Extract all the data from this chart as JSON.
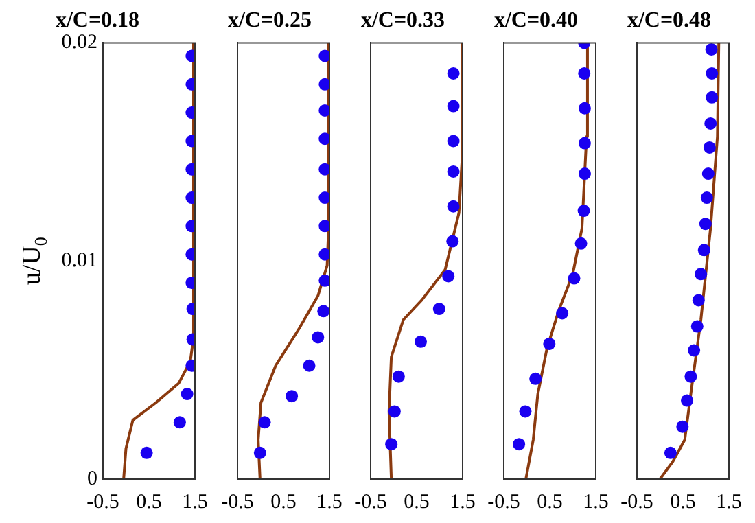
{
  "chart_data": [
    {
      "type": "scatter",
      "title": "x/C=0.18",
      "ylabel": "u/U$_{0}$",
      "xlim": [
        -0.5,
        1.5
      ],
      "xticks": [
        -0.5,
        0.5,
        1.5
      ],
      "ylim": [
        0,
        0.02
      ],
      "yticks": [
        0,
        0.01,
        0.02
      ],
      "grid": false,
      "legend": false,
      "series": [
        {
          "type": "scatter",
          "color": "#1a00f0",
          "marker": "circle",
          "x": [
            1.43,
            1.43,
            1.43,
            1.43,
            1.43,
            1.43,
            1.43,
            1.43,
            1.43,
            1.45,
            1.45,
            1.43,
            1.33,
            1.17,
            0.45
          ],
          "values": [
            0.0194,
            0.0181,
            0.0168,
            0.0155,
            0.0142,
            0.0129,
            0.0116,
            0.0103,
            0.009,
            0.0078,
            0.0064,
            0.0052,
            0.0039,
            0.0026,
            0.0012
          ]
        },
        {
          "type": "line",
          "color": "#8b3a0f",
          "marker": "none",
          "x": [
            -0.05,
            0.0,
            0.15,
            0.65,
            1.15,
            1.4,
            1.47,
            1.47
          ],
          "values": [
            0,
            0.0014,
            0.0027,
            0.0035,
            0.0044,
            0.0054,
            0.0065,
            0.02
          ]
        }
      ]
    },
    {
      "type": "scatter",
      "title": "x/C=0.25",
      "xlim": [
        -0.5,
        1.5
      ],
      "xticks": [
        -0.5,
        0.5,
        1.5
      ],
      "ylim": [
        0,
        0.02
      ],
      "yticks": [
        0,
        0.01,
        0.02
      ],
      "tick_labels": "x",
      "grid": false,
      "legend": false,
      "series": [
        {
          "type": "scatter",
          "color": "#1a00f0",
          "marker": "circle",
          "x": [
            1.4,
            1.4,
            1.4,
            1.4,
            1.4,
            1.4,
            1.4,
            1.4,
            1.4,
            1.37,
            1.25,
            1.06,
            0.68,
            0.09,
            -0.01
          ],
          "values": [
            0.0194,
            0.0181,
            0.0169,
            0.0156,
            0.0142,
            0.0129,
            0.0116,
            0.0103,
            0.0091,
            0.0077,
            0.0065,
            0.0052,
            0.0038,
            0.0026,
            0.0012
          ]
        },
        {
          "type": "line",
          "color": "#8b3a0f",
          "marker": "none",
          "x": [
            -0.01,
            -0.05,
            0.01,
            0.33,
            0.84,
            1.25,
            1.45,
            1.48,
            1.48
          ],
          "values": [
            0,
            0.0018,
            0.0035,
            0.0052,
            0.0069,
            0.0084,
            0.0098,
            0.0115,
            0.02
          ]
        }
      ]
    },
    {
      "type": "scatter",
      "title": "x/C=0.33",
      "xlim": [
        -0.5,
        1.5
      ],
      "xticks": [
        -0.5,
        0.5,
        1.5
      ],
      "ylim": [
        0,
        0.02
      ],
      "yticks": [
        0,
        0.01,
        0.02
      ],
      "tick_labels": "x",
      "grid": false,
      "legend": false,
      "series": [
        {
          "type": "scatter",
          "color": "#1a00f0",
          "marker": "circle",
          "x": [
            1.3,
            1.3,
            1.3,
            1.3,
            1.3,
            1.28,
            1.19,
            0.99,
            0.59,
            0.11,
            0.02,
            -0.05
          ],
          "values": [
            0.0186,
            0.0171,
            0.0155,
            0.0141,
            0.0125,
            0.0109,
            0.0093,
            0.0078,
            0.0063,
            0.0047,
            0.0031,
            0.0016
          ]
        },
        {
          "type": "line",
          "color": "#8b3a0f",
          "marker": "none",
          "x": [
            -0.05,
            -0.1,
            -0.05,
            0.21,
            0.61,
            1.12,
            1.42,
            1.49,
            1.49
          ],
          "values": [
            0,
            0.0031,
            0.0056,
            0.0073,
            0.0082,
            0.0096,
            0.0122,
            0.0147,
            0.02
          ]
        }
      ]
    },
    {
      "type": "scatter",
      "title": "x/C=0.40",
      "xlim": [
        -0.5,
        1.5
      ],
      "xticks": [
        -0.5,
        0.5,
        1.5
      ],
      "ylim": [
        0,
        0.02
      ],
      "yticks": [
        0,
        0.01,
        0.02
      ],
      "tick_labels": "x",
      "grid": false,
      "legend": false,
      "series": [
        {
          "type": "scatter",
          "color": "#1a00f0",
          "marker": "circle",
          "x": [
            1.25,
            1.25,
            1.26,
            1.26,
            1.26,
            1.24,
            1.18,
            1.03,
            0.77,
            0.49,
            0.19,
            -0.03,
            -0.17
          ],
          "values": [
            0.02,
            0.0186,
            0.017,
            0.0154,
            0.014,
            0.0123,
            0.0108,
            0.0092,
            0.0076,
            0.0062,
            0.0046,
            0.0031,
            0.0016
          ]
        },
        {
          "type": "line",
          "color": "#8b3a0f",
          "marker": "none",
          "x": [
            -0.02,
            0.14,
            0.24,
            0.44,
            0.69,
            1.0,
            1.2,
            1.3,
            1.32
          ],
          "values": [
            0,
            0.0018,
            0.0039,
            0.006,
            0.0077,
            0.0094,
            0.0115,
            0.0157,
            0.02
          ]
        }
      ]
    },
    {
      "type": "scatter",
      "title": "x/C=0.48",
      "xlim": [
        -0.5,
        1.5
      ],
      "xticks": [
        -0.5,
        0.5,
        1.5
      ],
      "ylim": [
        0,
        0.02
      ],
      "yticks": [
        0,
        0.01,
        0.02
      ],
      "tick_labels": "x",
      "grid": false,
      "legend": false,
      "series": [
        {
          "type": "scatter",
          "color": "#1a00f0",
          "marker": "circle",
          "x": [
            1.12,
            1.13,
            1.13,
            1.1,
            1.08,
            1.05,
            1.02,
            0.99,
            0.96,
            0.89,
            0.84,
            0.81,
            0.74,
            0.67,
            0.59,
            0.49,
            0.23
          ],
          "values": [
            0.0197,
            0.0186,
            0.0175,
            0.0163,
            0.0152,
            0.014,
            0.0129,
            0.0117,
            0.0105,
            0.0094,
            0.0082,
            0.007,
            0.0059,
            0.0047,
            0.0036,
            0.0024,
            0.0012
          ]
        },
        {
          "type": "line",
          "color": "#8b3a0f",
          "marker": "none",
          "x": [
            0.0,
            0.28,
            0.54,
            0.69,
            0.89,
            1.1,
            1.25,
            1.28
          ],
          "values": [
            0,
            0.0008,
            0.0018,
            0.0042,
            0.0073,
            0.0115,
            0.0157,
            0.02
          ]
        }
      ]
    }
  ]
}
